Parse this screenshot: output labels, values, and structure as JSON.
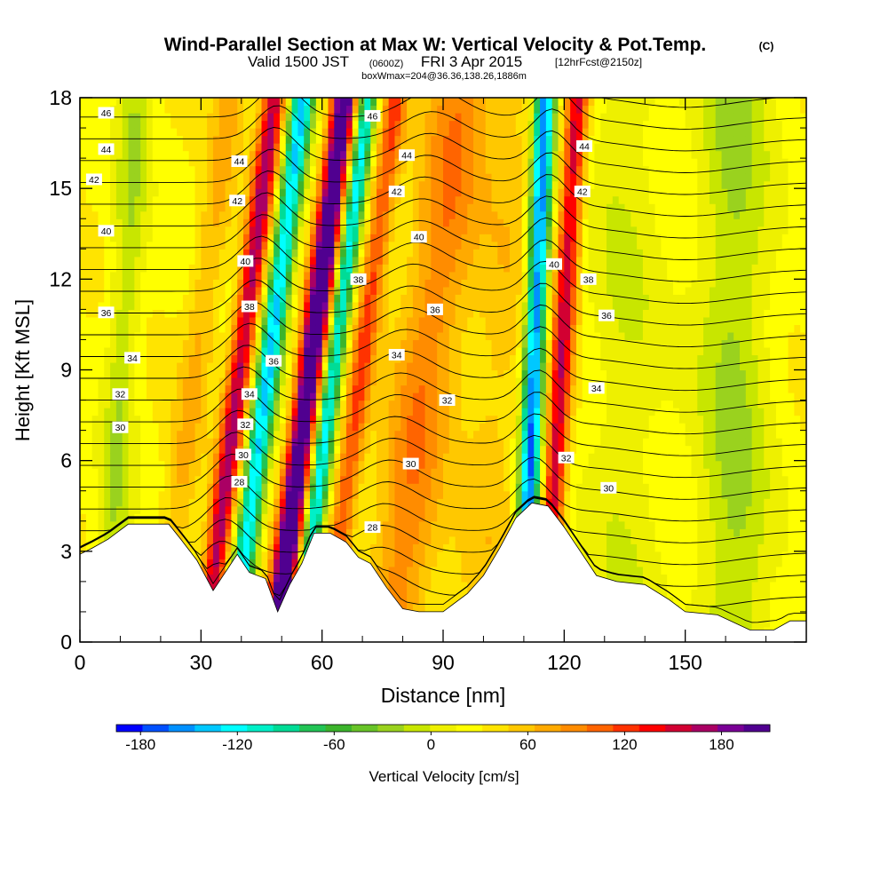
{
  "titles": {
    "main": "Wind-Parallel Section at Max W: Vertical Velocity & Pot.Temp.",
    "copyright": "(C)",
    "valid_prefix": "Valid 1500 JST",
    "valid_zulu": "(0600Z)",
    "valid_date": "FRI 3 Apr 2015",
    "forecast": "[12hrFcst@2150z]",
    "box": "boxWmax=204@36.36,138.26,1886m"
  },
  "chart_data": {
    "type": "heatmap",
    "xlabel": "Distance [nm]",
    "ylabel": "Height [Kft MSL]",
    "xlim": [
      0,
      180
    ],
    "ylim": [
      0,
      18
    ],
    "x_ticks": [
      0,
      30,
      60,
      90,
      120,
      150
    ],
    "y_ticks": [
      0,
      3,
      6,
      9,
      12,
      15,
      18
    ],
    "colorbar": {
      "label": "Vertical Velocity [cm/s]",
      "tick_labels": [
        "-180",
        "-120",
        "-60",
        "0",
        "60",
        "120",
        "180"
      ],
      "tick_values": [
        -180,
        -120,
        -60,
        0,
        60,
        120,
        180
      ],
      "min": -195,
      "max": 210,
      "step": 15,
      "colors": [
        "#0000ff",
        "#0050ff",
        "#0090ff",
        "#00c8ff",
        "#00ffff",
        "#00f0c8",
        "#00dc96",
        "#22c455",
        "#3cb42c",
        "#68c428",
        "#9ad21e",
        "#c8e600",
        "#eef000",
        "#ffff00",
        "#ffe400",
        "#ffc800",
        "#ffaa00",
        "#ff8c00",
        "#ff6400",
        "#ff3200",
        "#ff0000",
        "#d20032",
        "#aa0064",
        "#7a0096",
        "#500090"
      ]
    },
    "velocity_features": [
      {
        "x_nm": 8,
        "z_bottom_kft": 3,
        "z_top_kft": 18,
        "tilt_nm_per_kft": 0.4,
        "width_nm": 4,
        "w_cms": -40
      },
      {
        "x_nm": 23,
        "z_bottom_kft": 3,
        "z_top_kft": 18,
        "tilt_nm_per_kft": 0.95,
        "width_nm": 4,
        "w_cms": 35
      },
      {
        "x_nm": 34,
        "z_bottom_kft": 3,
        "z_top_kft": 18,
        "tilt_nm_per_kft": 0.95,
        "width_nm": 3,
        "w_cms": 130
      },
      {
        "x_nm": 40,
        "z_bottom_kft": 2,
        "z_top_kft": 18,
        "tilt_nm_per_kft": 0.95,
        "width_nm": 3,
        "w_cms": -150
      },
      {
        "x_nm": 50,
        "z_bottom_kft": 1.5,
        "z_top_kft": 18,
        "tilt_nm_per_kft": 0.95,
        "width_nm": 3.2,
        "w_cms": 200
      },
      {
        "x_nm": 57,
        "z_bottom_kft": 3,
        "z_top_kft": 18,
        "tilt_nm_per_kft": 0.95,
        "width_nm": 2.5,
        "w_cms": -140
      },
      {
        "x_nm": 64,
        "z_bottom_kft": 3,
        "z_top_kft": 18,
        "tilt_nm_per_kft": 0.95,
        "width_nm": 3,
        "w_cms": 80
      },
      {
        "x_nm": 78,
        "z_bottom_kft": 1,
        "z_top_kft": 18,
        "tilt_nm_per_kft": 0.95,
        "width_nm": 8,
        "w_cms": 60
      },
      {
        "x_nm": 101,
        "z_bottom_kft": 3,
        "z_top_kft": 18,
        "tilt_nm_per_kft": 0.5,
        "width_nm": 8,
        "w_cms": 25
      },
      {
        "x_nm": 111,
        "z_bottom_kft": 4,
        "z_top_kft": 18,
        "tilt_nm_per_kft": 0.3,
        "width_nm": 2.6,
        "w_cms": -180
      },
      {
        "x_nm": 117,
        "z_bottom_kft": 4,
        "z_top_kft": 18,
        "tilt_nm_per_kft": 0.45,
        "width_nm": 2.8,
        "w_cms": 120
      },
      {
        "x_nm": 135,
        "z_bottom_kft": 1,
        "z_top_kft": 18,
        "tilt_nm_per_kft": 0.0,
        "width_nm": 10,
        "w_cms": -25
      },
      {
        "x_nm": 162,
        "z_bottom_kft": 1,
        "z_top_kft": 18,
        "tilt_nm_per_kft": 0.0,
        "width_nm": 9,
        "w_cms": -45
      }
    ],
    "terrain_kft": [
      [
        0,
        2.9
      ],
      [
        3,
        3.1
      ],
      [
        7,
        3.4
      ],
      [
        12,
        3.9
      ],
      [
        22,
        3.9
      ],
      [
        25,
        3.4
      ],
      [
        29,
        2.7
      ],
      [
        33,
        1.7
      ],
      [
        36,
        2.3
      ],
      [
        39,
        2.9
      ],
      [
        42,
        2.3
      ],
      [
        46,
        2.1
      ],
      [
        49,
        1.0
      ],
      [
        52,
        1.9
      ],
      [
        55,
        2.6
      ],
      [
        58,
        3.6
      ],
      [
        62,
        3.6
      ],
      [
        66,
        3.3
      ],
      [
        69,
        2.8
      ],
      [
        72,
        2.6
      ],
      [
        76,
        1.8
      ],
      [
        80,
        1.1
      ],
      [
        84,
        1.0
      ],
      [
        90,
        1.0
      ],
      [
        96,
        1.6
      ],
      [
        100,
        2.2
      ],
      [
        104,
        3.1
      ],
      [
        108,
        4.1
      ],
      [
        112,
        4.6
      ],
      [
        116,
        4.5
      ],
      [
        120,
        3.8
      ],
      [
        124,
        3.0
      ],
      [
        128,
        2.2
      ],
      [
        133,
        2.0
      ],
      [
        140,
        1.9
      ],
      [
        146,
        1.4
      ],
      [
        150,
        1.0
      ],
      [
        158,
        0.9
      ],
      [
        166,
        0.4
      ],
      [
        172,
        0.4
      ],
      [
        176,
        0.7
      ],
      [
        180,
        0.7
      ]
    ],
    "isentropes_theta": [
      28,
      30,
      32,
      34,
      36,
      38,
      40,
      42,
      44,
      46
    ],
    "contour_labels": [
      {
        "text": "46",
        "x_nm": 6.5,
        "z_kft": 17.5
      },
      {
        "text": "44",
        "x_nm": 6.5,
        "z_kft": 16.3
      },
      {
        "text": "42",
        "x_nm": 3.5,
        "z_kft": 15.3
      },
      {
        "text": "40",
        "x_nm": 6.5,
        "z_kft": 13.6
      },
      {
        "text": "36",
        "x_nm": 6.5,
        "z_kft": 10.9
      },
      {
        "text": "34",
        "x_nm": 13,
        "z_kft": 9.4
      },
      {
        "text": "32",
        "x_nm": 10,
        "z_kft": 8.2
      },
      {
        "text": "30",
        "x_nm": 10,
        "z_kft": 7.1
      },
      {
        "text": "44",
        "x_nm": 39.5,
        "z_kft": 15.9
      },
      {
        "text": "42",
        "x_nm": 39,
        "z_kft": 14.6
      },
      {
        "text": "40",
        "x_nm": 41,
        "z_kft": 12.6
      },
      {
        "text": "38",
        "x_nm": 42,
        "z_kft": 11.1
      },
      {
        "text": "36",
        "x_nm": 48,
        "z_kft": 9.3
      },
      {
        "text": "34",
        "x_nm": 42,
        "z_kft": 8.2
      },
      {
        "text": "32",
        "x_nm": 41,
        "z_kft": 7.2
      },
      {
        "text": "30",
        "x_nm": 40.5,
        "z_kft": 6.2
      },
      {
        "text": "28",
        "x_nm": 39.5,
        "z_kft": 5.3
      },
      {
        "text": "46",
        "x_nm": 72.5,
        "z_kft": 17.4
      },
      {
        "text": "44",
        "x_nm": 81,
        "z_kft": 16.1
      },
      {
        "text": "42",
        "x_nm": 78.5,
        "z_kft": 14.9
      },
      {
        "text": "40",
        "x_nm": 84,
        "z_kft": 13.4
      },
      {
        "text": "38",
        "x_nm": 69,
        "z_kft": 12.0
      },
      {
        "text": "36",
        "x_nm": 88,
        "z_kft": 11.0
      },
      {
        "text": "34",
        "x_nm": 78.5,
        "z_kft": 9.5
      },
      {
        "text": "32",
        "x_nm": 91,
        "z_kft": 8.0
      },
      {
        "text": "30",
        "x_nm": 82,
        "z_kft": 5.9
      },
      {
        "text": "28",
        "x_nm": 72.5,
        "z_kft": 3.8
      },
      {
        "text": "44",
        "x_nm": 125,
        "z_kft": 16.4
      },
      {
        "text": "42",
        "x_nm": 124.5,
        "z_kft": 14.9
      },
      {
        "text": "40",
        "x_nm": 117.5,
        "z_kft": 12.5
      },
      {
        "text": "38",
        "x_nm": 126,
        "z_kft": 12.0
      },
      {
        "text": "36",
        "x_nm": 130.5,
        "z_kft": 10.8
      },
      {
        "text": "34",
        "x_nm": 128,
        "z_kft": 8.4
      },
      {
        "text": "32",
        "x_nm": 120.5,
        "z_kft": 6.1
      },
      {
        "text": "30",
        "x_nm": 131,
        "z_kft": 5.1
      }
    ]
  }
}
